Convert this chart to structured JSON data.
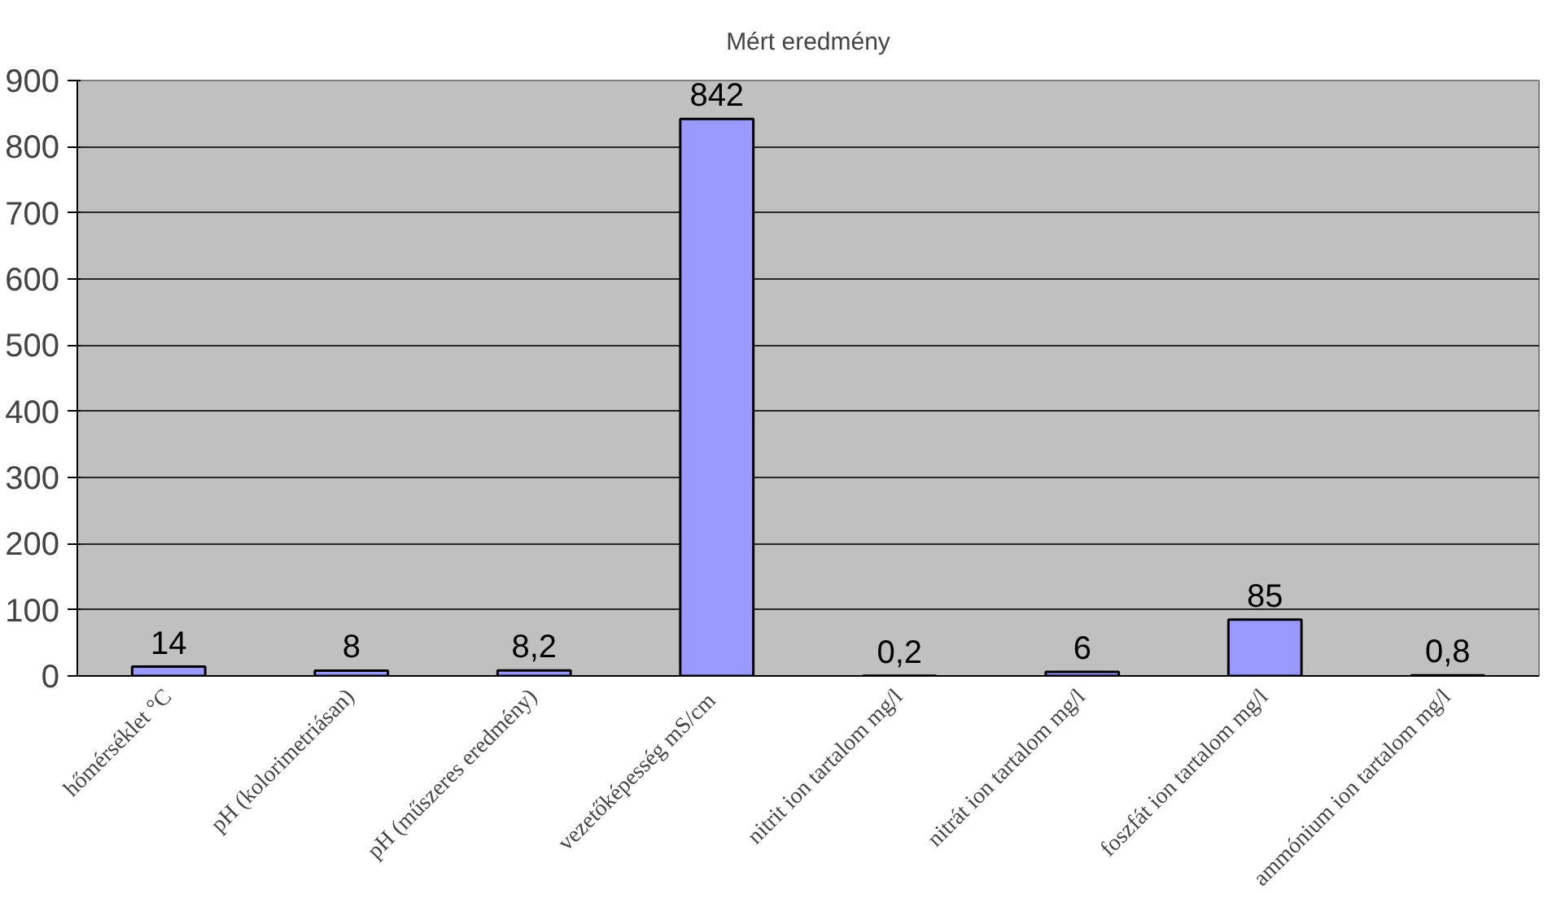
{
  "chart_data": {
    "type": "bar",
    "title": "Mért eredmény",
    "categories": [
      "hőmérséklet °C",
      "pH (kolorimetriásan)",
      "pH (műszeres eredmény)",
      "vezetőképesség  mS/cm",
      "nitrit ion tartalom mg/l",
      "nitrát ion tartalom mg/l",
      "foszfát ion tartalom mg/l",
      "ammónium ion tartalom mg/l"
    ],
    "values": [
      14,
      8,
      8.2,
      842,
      0.2,
      6,
      85,
      0.8
    ],
    "value_labels": [
      "14",
      "8",
      "8,2",
      "842",
      "0,2",
      "6",
      "85",
      "0,8"
    ],
    "color": "#9999ff",
    "ylim": [
      0,
      900
    ],
    "yticks": [
      0,
      100,
      200,
      300,
      400,
      500,
      600,
      700,
      800,
      900
    ],
    "grid": "y"
  }
}
